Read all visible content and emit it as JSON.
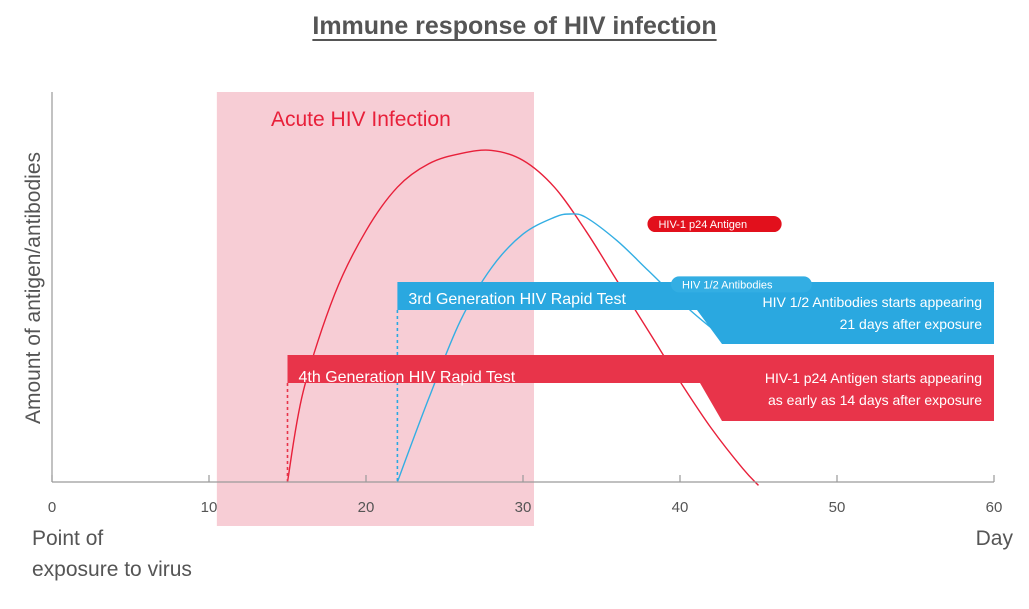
{
  "title": "Immune response of HIV infection",
  "colors": {
    "axis": "#9a9a9a",
    "text": "#555555",
    "acute_band": "#f7cdd5",
    "acute_text": "#e8203a",
    "antigen": "#e8203a",
    "antigen_tag": "#e2101c",
    "antibody": "#33aee3",
    "test_red": "#e8344a",
    "test_blue": "#2aa8e0",
    "white": "#ffffff"
  },
  "chart_data": {
    "type": "line",
    "xlabel": "Day",
    "ylabel": "Amount of antigen/antibodies",
    "origin_label": [
      "Point of",
      "exposure to virus"
    ],
    "xlim": [
      0,
      60
    ],
    "x_ticks": [
      0,
      10,
      20,
      30,
      40,
      50,
      60
    ],
    "ylim": [
      0,
      100
    ],
    "grid": false,
    "series": [
      {
        "name": "HIV-1 p24 Antigen",
        "color": "antigen",
        "points": [
          [
            15,
            0
          ],
          [
            16,
            27
          ],
          [
            18,
            56
          ],
          [
            20,
            75
          ],
          [
            22,
            88
          ],
          [
            24,
            95
          ],
          [
            26,
            98
          ],
          [
            28,
            99
          ],
          [
            30,
            96
          ],
          [
            32,
            88
          ],
          [
            34,
            75
          ],
          [
            36,
            60
          ],
          [
            38,
            45
          ],
          [
            40,
            30
          ],
          [
            42,
            16
          ],
          [
            44,
            4
          ],
          [
            45,
            -1
          ]
        ]
      },
      {
        "name": "HIV 1/2 Antibodies",
        "color": "antibody",
        "points": [
          [
            22,
            0
          ],
          [
            24,
            25
          ],
          [
            26,
            48
          ],
          [
            28,
            64
          ],
          [
            30,
            74
          ],
          [
            32,
            79
          ],
          [
            33,
            80
          ],
          [
            34,
            79
          ],
          [
            36,
            72
          ],
          [
            38,
            63
          ],
          [
            40,
            54
          ],
          [
            42,
            46
          ],
          [
            43,
            43
          ],
          [
            46,
            43
          ],
          [
            50,
            46
          ],
          [
            54,
            49
          ],
          [
            58,
            54
          ],
          [
            60,
            57
          ]
        ]
      }
    ],
    "annotations": {
      "acute_band": {
        "x_start": 10.5,
        "x_end": 30.7,
        "label": "Acute HIV Infection"
      },
      "antigen_tag": {
        "label": "HIV-1 p24 Antigen",
        "x": 38.5,
        "y": 77
      },
      "antibody_tag": {
        "label": "HIV 1/2 Antibodies",
        "x": 40,
        "y": 59
      },
      "tests": [
        {
          "label": "3rd Generation HIV Rapid Test",
          "start_day": 22,
          "note_lines": [
            "HIV 1/2 Antibodies starts appearing",
            "21 days after exposure"
          ],
          "color": "test_blue"
        },
        {
          "label": "4th Generation HIV Rapid Test",
          "start_day": 15,
          "note_lines": [
            "HIV-1 p24 Antigen starts appearing",
            "as early as 14 days after exposure"
          ],
          "color": "test_red"
        }
      ]
    }
  }
}
